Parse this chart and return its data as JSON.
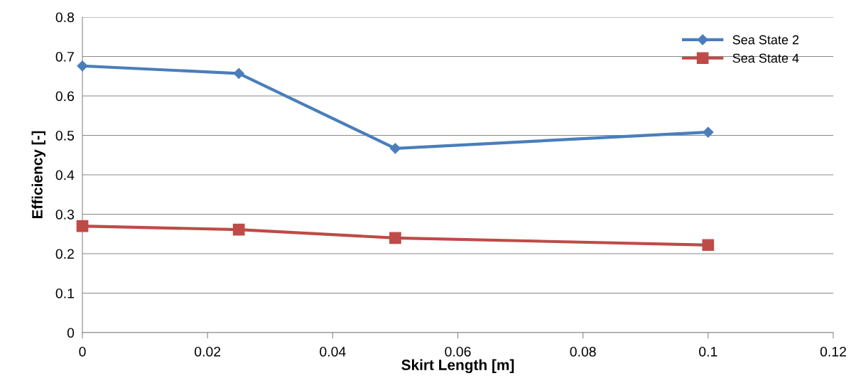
{
  "chart_data": {
    "type": "line",
    "xlabel": "Skirt Length [m]",
    "ylabel": "Efficiency [-]",
    "x": [
      0,
      0.025,
      0.05,
      0.1
    ],
    "series": [
      {
        "name": "Sea State 2",
        "color": "#4a7ebb",
        "marker": "diamond",
        "values": [
          0.676,
          0.657,
          0.467,
          0.508
        ]
      },
      {
        "name": "Sea State 4",
        "color": "#be4b48",
        "marker": "square",
        "values": [
          0.27,
          0.261,
          0.24,
          0.222
        ]
      }
    ],
    "xlim": [
      0,
      0.12
    ],
    "xticks": [
      0,
      0.02,
      0.04,
      0.06,
      0.08,
      0.1,
      0.12
    ],
    "ylim": [
      0,
      0.8
    ],
    "yticks": [
      0,
      0.1,
      0.2,
      0.3,
      0.4,
      0.5,
      0.6,
      0.7,
      0.8
    ],
    "grid": "y",
    "legend": "top right",
    "line_style": "solid"
  }
}
